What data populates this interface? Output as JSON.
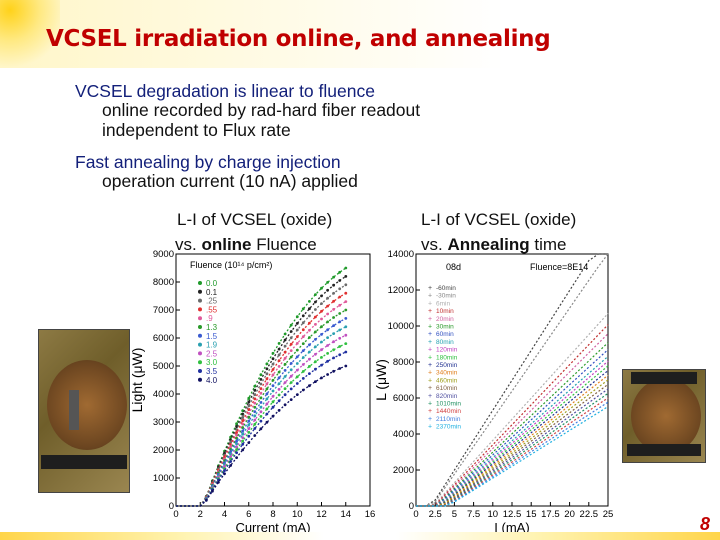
{
  "slide": {
    "title": "VCSEL irradiation online, and annealing",
    "page_number": "8",
    "bullets": [
      {
        "head": "VCSEL degradation is linear to fluence",
        "subs": [
          "online recorded by rad-hard fiber readout",
          "independent to Flux rate"
        ]
      },
      {
        "head": "Fast annealing by charge injection",
        "subs": [
          "operation current (10 nA) applied"
        ]
      }
    ],
    "caption_left": {
      "line1": "L-I of VCSEL (oxide)",
      "line2_prefix": "vs. ",
      "line2_bold": "online",
      "line2_suffix": " Fluence"
    },
    "caption_right": {
      "line1": "L-I of VCSEL (oxide)",
      "line2_prefix": "vs. ",
      "line2_bold": "Annealing",
      "line2_suffix": " time"
    }
  },
  "chart_data": [
    {
      "type": "line",
      "xlabel": "Current (mA)",
      "ylabel": "Light (μW)",
      "xlim": [
        0,
        16
      ],
      "ylim": [
        0,
        9000
      ],
      "xticks": [
        "0",
        "2",
        "4",
        "6",
        "8",
        "10",
        "12",
        "14",
        "16"
      ],
      "yticks": [
        "0",
        "1000",
        "2000",
        "3000",
        "4000",
        "5000",
        "6000",
        "7000",
        "8000",
        "9000"
      ],
      "legend_title": "Fluence (10¹⁴ p/cm²)",
      "legend_position": "top-left",
      "threshold": 2.2,
      "series": [
        {
          "name": "0.0",
          "color": "#1f9a2a",
          "max": 8500
        },
        {
          "name": "0.1",
          "color": "#222222",
          "max": 8200
        },
        {
          "name": ".25",
          "color": "#6a6a6a",
          "max": 7900
        },
        {
          "name": ".55",
          "color": "#e03030",
          "max": 7600
        },
        {
          "name": ".9",
          "color": "#e05a9a",
          "max": 7300
        },
        {
          "name": "1.3",
          "color": "#2a9a2a",
          "max": 7000
        },
        {
          "name": "1.5",
          "color": "#3a5ad0",
          "max": 6700
        },
        {
          "name": "1.9",
          "color": "#2aa0b0",
          "max": 6400
        },
        {
          "name": "2.5",
          "color": "#c050c0",
          "max": 6100
        },
        {
          "name": "3.0",
          "color": "#30c040",
          "max": 5800
        },
        {
          "name": "3.5",
          "color": "#2030a0",
          "max": 5500
        },
        {
          "name": "4.0",
          "color": "#101060",
          "max": 5000
        }
      ]
    },
    {
      "type": "line",
      "xlabel": "I (mA)",
      "ylabel": "L (μW)",
      "xlim": [
        0,
        25
      ],
      "ylim": [
        0,
        14000
      ],
      "xticks": [
        "0",
        "2.5",
        "5",
        "7.5",
        "10",
        "12.5",
        "15",
        "17.5",
        "20",
        "22.5",
        "25"
      ],
      "yticks": [
        "0",
        "2000",
        "4000",
        "6000",
        "8000",
        "10000",
        "12000",
        "14000"
      ],
      "annotations": [
        "08d",
        "Fluence=8E14"
      ],
      "legend_position": "top-left",
      "series": [
        {
          "name": "-60min",
          "color": "#444444",
          "slope": 665
        },
        {
          "name": "-30min",
          "color": "#888888",
          "slope": 615
        },
        {
          "name": "6min",
          "color": "#b0b0b0",
          "slope": 470
        },
        {
          "name": "10min",
          "color": "#c03030",
          "slope": 445
        },
        {
          "name": "20min",
          "color": "#d060a0",
          "slope": 425
        },
        {
          "name": "30min",
          "color": "#2a9a2a",
          "slope": 405
        },
        {
          "name": "60min",
          "color": "#3050c0",
          "slope": 390
        },
        {
          "name": "80min",
          "color": "#20a0b0",
          "slope": 375
        },
        {
          "name": "120min",
          "color": "#c040c0",
          "slope": 365
        },
        {
          "name": "180min",
          "color": "#30c040",
          "slope": 355
        },
        {
          "name": "250min",
          "color": "#203090",
          "slope": 345
        },
        {
          "name": "340min",
          "color": "#e08020",
          "slope": 335
        },
        {
          "name": "460min",
          "color": "#a0a020",
          "slope": 325
        },
        {
          "name": "610min",
          "color": "#806040",
          "slope": 315
        },
        {
          "name": "820min",
          "color": "#5050a0",
          "slope": 305
        },
        {
          "name": "1010min",
          "color": "#209060",
          "slope": 295
        },
        {
          "name": "1440min",
          "color": "#d04040",
          "slope": 285
        },
        {
          "name": "2110min",
          "color": "#4080e0",
          "slope": 275
        },
        {
          "name": "2370min",
          "color": "#20b0e0",
          "slope": 265
        }
      ]
    }
  ]
}
